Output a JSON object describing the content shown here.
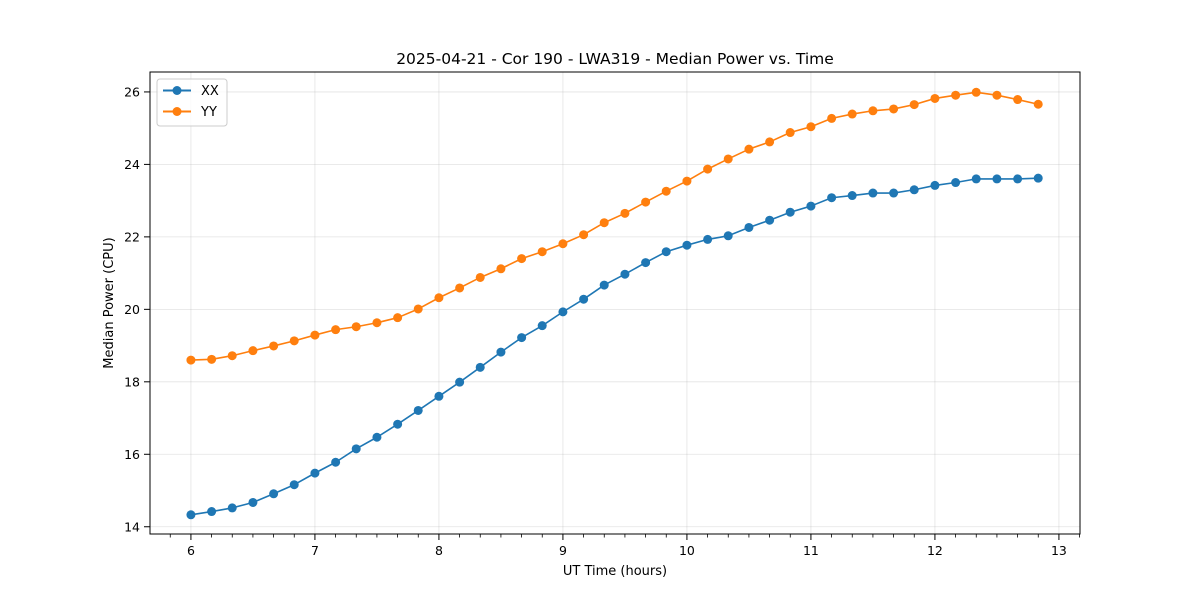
{
  "chart_data": {
    "type": "line",
    "title": "2025-04-21 - Cor 190 - LWA319 - Median Power vs. Time",
    "xlabel": "UT Time (hours)",
    "ylabel": "Median Power (CPU)",
    "xlim": [
      5.67,
      13.17
    ],
    "ylim": [
      13.8,
      26.55
    ],
    "xticks": [
      6,
      7,
      8,
      9,
      10,
      11,
      12,
      13
    ],
    "yticks": [
      14,
      16,
      18,
      20,
      22,
      24,
      26
    ],
    "grid": true,
    "legend_position": "upper-left",
    "x": [
      6.0,
      6.167,
      6.333,
      6.5,
      6.667,
      6.833,
      7.0,
      7.167,
      7.333,
      7.5,
      7.667,
      7.833,
      8.0,
      8.167,
      8.333,
      8.5,
      8.667,
      8.833,
      9.0,
      9.167,
      9.333,
      9.5,
      9.667,
      9.833,
      10.0,
      10.167,
      10.333,
      10.5,
      10.667,
      10.833,
      11.0,
      11.167,
      11.333,
      11.5,
      11.667,
      11.833,
      12.0,
      12.167,
      12.333,
      12.5,
      12.667,
      12.833
    ],
    "series": [
      {
        "name": "XX",
        "color": "#1f77b4",
        "values": [
          14.33,
          14.42,
          14.52,
          14.67,
          14.91,
          15.16,
          15.48,
          15.78,
          16.15,
          16.47,
          16.83,
          17.21,
          17.6,
          17.99,
          18.4,
          18.82,
          19.22,
          19.55,
          19.93,
          20.28,
          20.67,
          20.97,
          21.29,
          21.59,
          21.77,
          21.93,
          22.03,
          22.26,
          22.46,
          22.68,
          22.85,
          23.08,
          23.14,
          23.21,
          23.21,
          23.3,
          23.42,
          23.5,
          23.6,
          23.6,
          23.6,
          23.62
        ]
      },
      {
        "name": "YY",
        "color": "#ff7f0e",
        "values": [
          18.6,
          18.62,
          18.72,
          18.86,
          18.99,
          19.13,
          19.29,
          19.44,
          19.52,
          19.63,
          19.77,
          20.01,
          20.32,
          20.59,
          20.88,
          21.12,
          21.4,
          21.59,
          21.81,
          22.06,
          22.39,
          22.65,
          22.96,
          23.26,
          23.54,
          23.87,
          24.15,
          24.42,
          24.62,
          24.88,
          25.04,
          25.27,
          25.39,
          25.48,
          25.53,
          25.65,
          25.82,
          25.91,
          25.99,
          25.91,
          25.79,
          25.66
        ]
      }
    ]
  }
}
